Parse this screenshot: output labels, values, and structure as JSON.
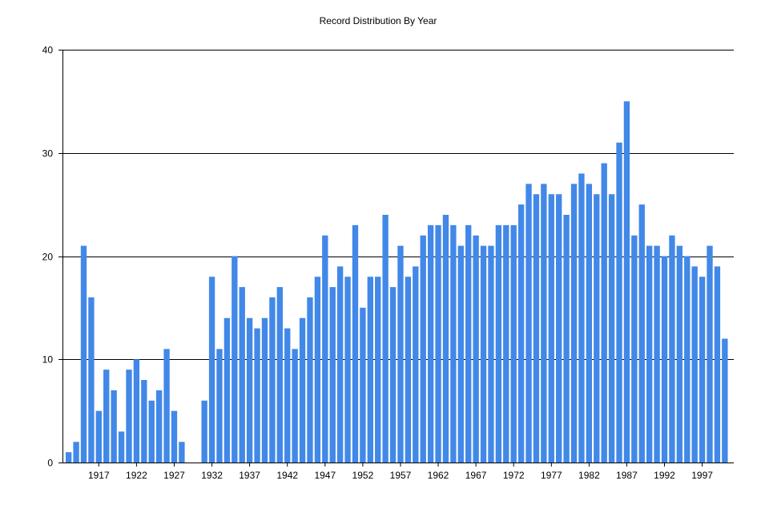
{
  "chart_data": {
    "type": "bar",
    "title": "Record Distribution By Year",
    "xlabel": "",
    "ylabel": "",
    "ylim": [
      0,
      40
    ],
    "yticks": [
      0,
      10,
      20,
      30,
      40
    ],
    "grid": true,
    "x_tick_labels": [
      "1917",
      "1922",
      "1927",
      "1932",
      "1937",
      "1942",
      "1947",
      "1952",
      "1957",
      "1962",
      "1967",
      "1972",
      "1977",
      "1982",
      "1987",
      "1992",
      "1997"
    ],
    "categories": [
      "1913",
      "1914",
      "1915",
      "1916",
      "1917",
      "1918",
      "1919",
      "1920",
      "1921",
      "1922",
      "1923",
      "1924",
      "1925",
      "1926",
      "1927",
      "1928",
      "1929",
      "1930",
      "1931",
      "1932",
      "1933",
      "1934",
      "1935",
      "1936",
      "1937",
      "1938",
      "1939",
      "1940",
      "1941",
      "1942",
      "1943",
      "1944",
      "1945",
      "1946",
      "1947",
      "1948",
      "1949",
      "1950",
      "1951",
      "1952",
      "1953",
      "1954",
      "1955",
      "1956",
      "1957",
      "1958",
      "1959",
      "1960",
      "1961",
      "1962",
      "1963",
      "1964",
      "1965",
      "1966",
      "1967",
      "1968",
      "1969",
      "1970",
      "1971",
      "1972",
      "1973",
      "1974",
      "1975",
      "1976",
      "1977",
      "1978",
      "1979",
      "1980",
      "1981",
      "1982",
      "1983",
      "1984",
      "1985",
      "1986",
      "1987",
      "1988",
      "1989",
      "1990",
      "1991",
      "1992",
      "1993",
      "1994",
      "1995",
      "1996",
      "1997",
      "1998",
      "1999",
      "2000",
      "2001"
    ],
    "values": [
      1,
      2,
      21,
      16,
      5,
      9,
      7,
      3,
      9,
      10,
      8,
      6,
      7,
      11,
      5,
      2,
      0,
      0,
      6,
      18,
      11,
      14,
      20,
      17,
      14,
      13,
      14,
      16,
      17,
      13,
      11,
      14,
      16,
      18,
      22,
      17,
      19,
      18,
      23,
      15,
      18,
      18,
      24,
      17,
      21,
      18,
      19,
      22,
      23,
      23,
      24,
      23,
      21,
      23,
      22,
      21,
      21,
      23,
      23,
      23,
      25,
      27,
      26,
      27,
      26,
      26,
      24,
      27,
      28,
      27,
      26,
      29,
      26,
      31,
      35,
      22,
      25,
      21,
      21,
      20,
      22,
      21,
      20,
      19,
      18,
      21,
      19,
      12,
      0
    ]
  }
}
